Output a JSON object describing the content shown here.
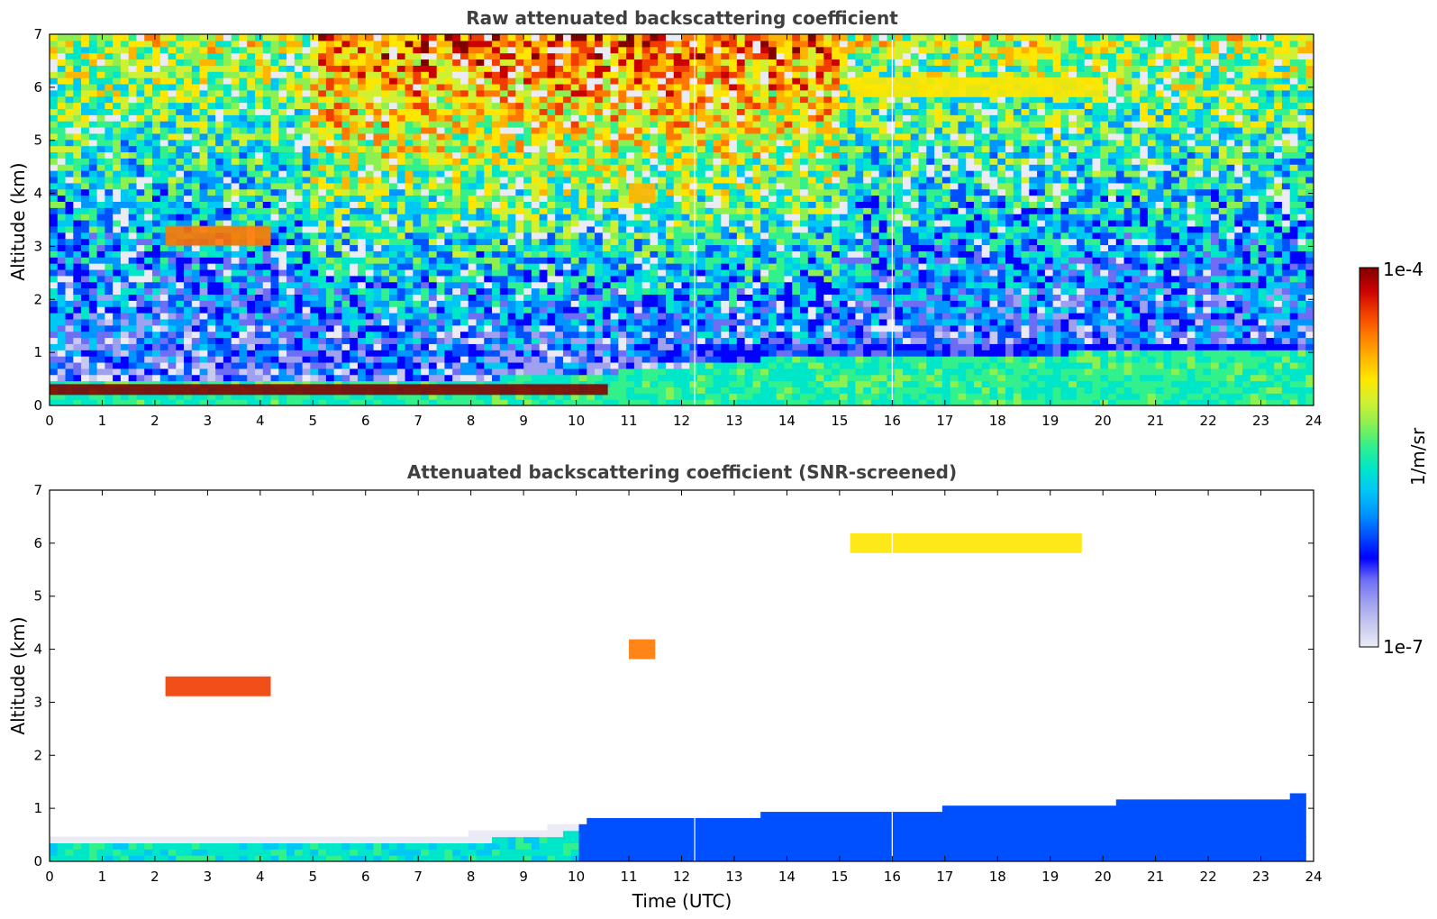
{
  "chart_data": [
    {
      "type": "heatmap",
      "title": "Raw attenuated backscattering coefficient",
      "xlabel": "",
      "ylabel": "Altitude (km)",
      "xlim": [
        0,
        24
      ],
      "ylim": [
        0,
        7
      ],
      "x_ticks": [
        "0",
        "1",
        "2",
        "3",
        "4",
        "5",
        "6",
        "7",
        "8",
        "9",
        "10",
        "11",
        "12",
        "13",
        "14",
        "15",
        "16",
        "17",
        "18",
        "19",
        "20",
        "21",
        "22",
        "23",
        "24"
      ],
      "y_ticks": [
        "0",
        "1",
        "2",
        "3",
        "4",
        "5",
        "6",
        "7"
      ],
      "features": [
        {
          "label": "boundary layer top aerosol (high backscatter)",
          "time_start": 0,
          "time_end": 10.6,
          "altitude_km": 0.3,
          "level": 0.95
        },
        {
          "label": "low cloud layer",
          "time_start": 2.2,
          "time_end": 4.2,
          "altitude_km": 3.2,
          "level": 0.8
        },
        {
          "label": "mid-level cloud",
          "time_start": 11.0,
          "time_end": 11.5,
          "altitude_km": 4.0,
          "level": 0.75
        },
        {
          "label": "upper cloud layer",
          "time_start": 15.2,
          "time_end": 20.0,
          "altitude_km": 6.0,
          "level": 0.7
        },
        {
          "label": "noisy molecular signal aloft",
          "time_start": 0,
          "time_end": 24,
          "altitude_km": 5.5,
          "level": 0.6
        },
        {
          "label": "residual layer (blue)",
          "time_start": 12.2,
          "time_end": 23.9,
          "altitude_km": 0.9,
          "level": 0.2
        }
      ]
    },
    {
      "type": "heatmap",
      "title": "Attenuated backscattering coefficient (SNR-screened)",
      "xlabel": "Time (UTC)",
      "ylabel": "Altitude (km)",
      "xlim": [
        0,
        24
      ],
      "ylim": [
        0,
        7
      ],
      "x_ticks": [
        "0",
        "1",
        "2",
        "3",
        "4",
        "5",
        "6",
        "7",
        "8",
        "9",
        "10",
        "11",
        "12",
        "13",
        "14",
        "15",
        "16",
        "17",
        "18",
        "19",
        "20",
        "21",
        "22",
        "23",
        "24"
      ],
      "y_ticks": [
        "0",
        "1",
        "2",
        "3",
        "4",
        "5",
        "6",
        "7"
      ],
      "features": [
        {
          "label": "boundary layer (screened)",
          "time_start": 0,
          "time_end": 23.9,
          "altitude_km": 0.4,
          "level": 0.3
        },
        {
          "label": "low cloud layer",
          "time_start": 2.2,
          "time_end": 4.2,
          "altitude_km": 3.3,
          "level": 0.85
        },
        {
          "label": "mid-level cloud",
          "time_start": 11.0,
          "time_end": 11.5,
          "altitude_km": 4.0,
          "level": 0.78
        },
        {
          "label": "upper cloud layer",
          "time_start": 15.2,
          "time_end": 19.6,
          "altitude_km": 6.0,
          "level": 0.72
        }
      ]
    }
  ],
  "colorbar": {
    "label": "1/m/sr",
    "max_label": "1e-4",
    "min_label": "1e-7",
    "scale": "log",
    "range": [
      1e-07,
      0.0001
    ],
    "colormap": [
      "#ebebf5",
      "#c8c8f0",
      "#a0a0f0",
      "#6e6ef5",
      "#0000ff",
      "#0050ff",
      "#0096ff",
      "#00c8f5",
      "#00e6c8",
      "#32f08c",
      "#8cf050",
      "#d2f032",
      "#ffe600",
      "#ffb400",
      "#ff7800",
      "#f03c00",
      "#c80000",
      "#800000"
    ]
  }
}
